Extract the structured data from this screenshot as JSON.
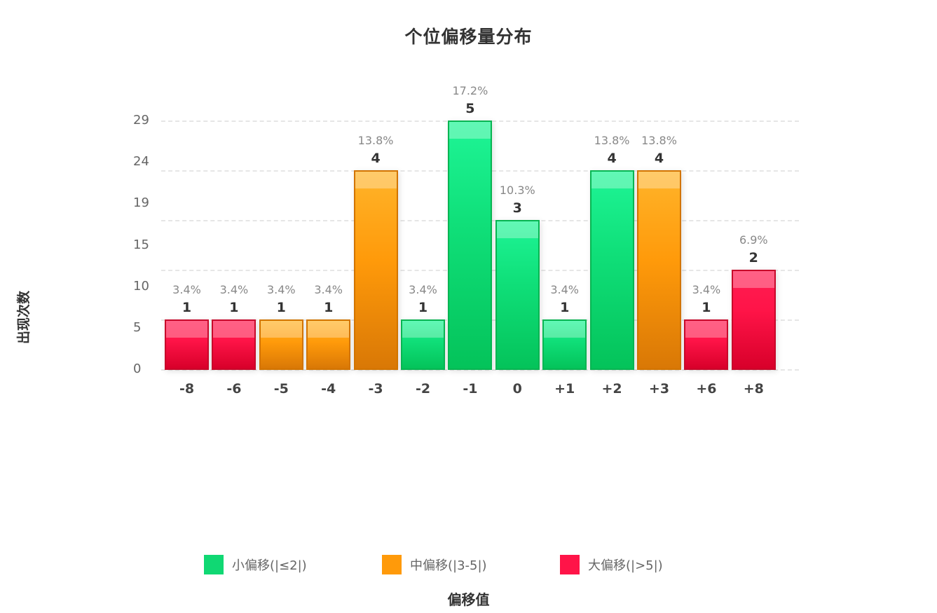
{
  "chart_data": {
    "type": "bar",
    "title": "个位偏移量分布",
    "xlabel": "偏移值",
    "ylabel": "出现次数",
    "categories": [
      "-8",
      "-6",
      "-5",
      "-4",
      "-3",
      "-2",
      "-1",
      "0",
      "+1",
      "+2",
      "+3",
      "+6",
      "+8"
    ],
    "values": [
      1,
      1,
      1,
      1,
      4,
      1,
      5,
      3,
      1,
      4,
      4,
      1,
      2
    ],
    "percentages": [
      "3.4%",
      "3.4%",
      "3.4%",
      "3.4%",
      "13.8%",
      "3.4%",
      "17.2%",
      "10.3%",
      "3.4%",
      "13.8%",
      "13.8%",
      "3.4%",
      "6.9%"
    ],
    "groups": [
      "red",
      "red",
      "orange",
      "orange",
      "orange",
      "green",
      "green",
      "green",
      "green",
      "green",
      "orange",
      "red",
      "red"
    ],
    "y_tick_labels": [
      "0",
      "5",
      "10",
      "15",
      "19",
      "24",
      "29"
    ],
    "ylim": [
      0,
      5
    ],
    "grid": true,
    "legend_position": "bottom",
    "legend": [
      {
        "label": "小偏移(|≤2|)",
        "color": "#10d873"
      },
      {
        "label": "中偏移(|3-5|)",
        "color": "#ff9a0a"
      },
      {
        "label": "大偏移(|>5|)",
        "color": "#ff1448"
      }
    ]
  },
  "colors": {
    "small": "#10d873",
    "medium": "#ff9a0a",
    "large": "#ff1448"
  }
}
